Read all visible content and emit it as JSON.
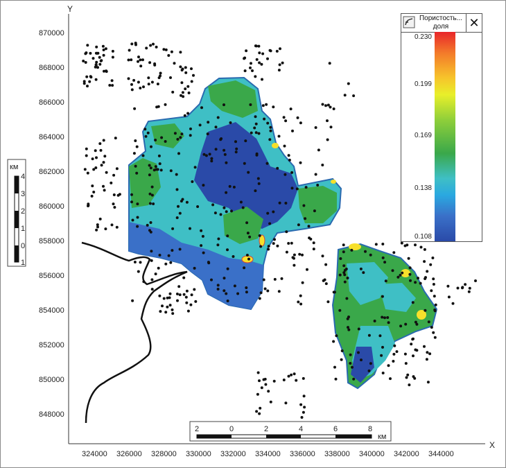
{
  "map": {
    "y_axis_label": "Y",
    "x_axis_label": "X",
    "y_ticks": [
      "870000",
      "868000",
      "866000",
      "864000",
      "862000",
      "860000",
      "858000",
      "856000",
      "854000",
      "852000",
      "850000",
      "848000"
    ],
    "x_ticks": [
      "324000",
      "326000",
      "328000",
      "330000",
      "332000",
      "334000",
      "336000",
      "338000",
      "340000",
      "342000",
      "344000"
    ]
  },
  "legend": {
    "title": "Пористость... доля",
    "close_symbol": "✕",
    "ticks": [
      "0.230",
      "0.199",
      "0.169",
      "0.138",
      "0.108"
    ],
    "colors": {
      "high": "#e8262a",
      "mid": "#3aa84a",
      "low": "#2a4aa8"
    }
  },
  "vertical_scale": {
    "unit": "км",
    "labels": [
      "4",
      "3",
      "2",
      "1",
      "0",
      "1"
    ]
  },
  "horizontal_scale": {
    "unit": "км",
    "labels": [
      "2",
      "0",
      "2",
      "4",
      "6",
      "8"
    ]
  }
}
